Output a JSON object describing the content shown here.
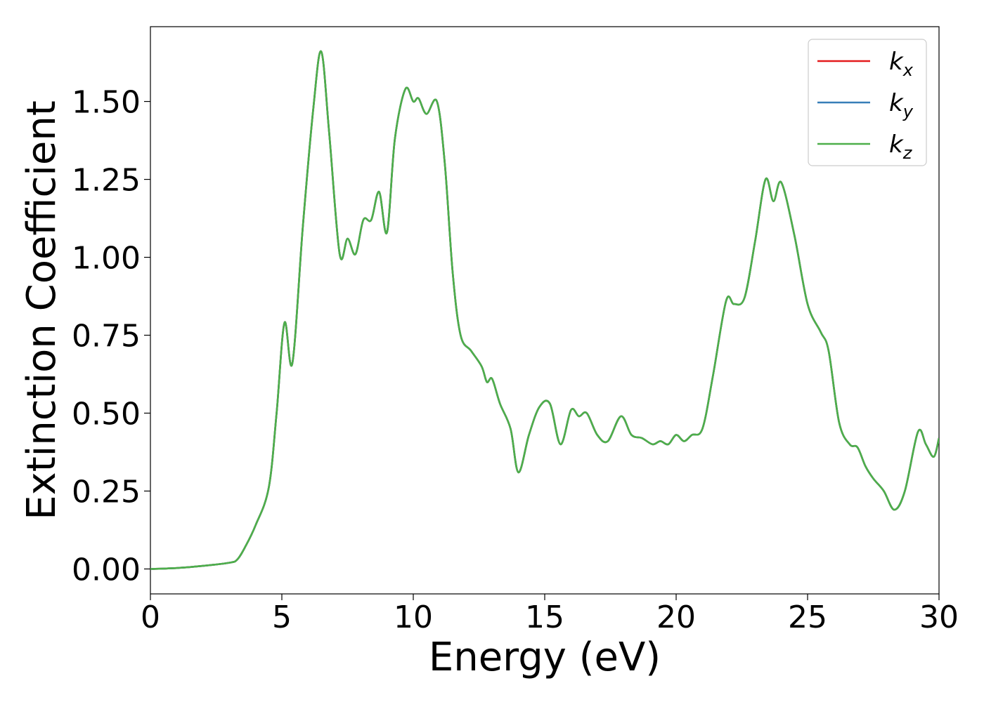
{
  "chart_data": {
    "type": "line",
    "xlabel": "Energy (eV)",
    "ylabel": "Extinction Coefficient",
    "xlim": [
      0,
      30
    ],
    "ylim": [
      -0.08,
      1.74
    ],
    "xticks": [
      0,
      5,
      10,
      15,
      20,
      25,
      30
    ],
    "xtick_labels": [
      "0",
      "5",
      "10",
      "15",
      "20",
      "25",
      "30"
    ],
    "yticks": [
      0,
      0.25,
      0.5,
      0.75,
      1.0,
      1.25,
      1.5
    ],
    "ytick_labels": [
      "0.00",
      "0.25",
      "0.50",
      "0.75",
      "1.00",
      "1.25",
      "1.50"
    ],
    "grid": false,
    "legend_position": "top-right",
    "series": [
      {
        "name": "k_x",
        "label_main": "k",
        "label_sub": "x",
        "color": "#e41a1c"
      },
      {
        "name": "k_y",
        "label_main": "k",
        "label_sub": "y",
        "color": "#377eb8"
      },
      {
        "name": "k_z",
        "label_main": "k",
        "label_sub": "z",
        "color": "#4daf4a"
      }
    ],
    "x": [
      0,
      1,
      2,
      3,
      3.3,
      3.6,
      4.0,
      4.5,
      4.8,
      5.1,
      5.4,
      5.8,
      6.2,
      6.5,
      6.8,
      7.2,
      7.5,
      7.8,
      8.1,
      8.4,
      8.7,
      9.0,
      9.3,
      9.7,
      10.0,
      10.2,
      10.5,
      10.9,
      11.2,
      11.5,
      11.8,
      12.2,
      12.6,
      12.8,
      13.0,
      13.3,
      13.7,
      14.0,
      14.4,
      14.8,
      15.2,
      15.6,
      16.0,
      16.3,
      16.6,
      17.0,
      17.4,
      17.9,
      18.3,
      18.7,
      19.1,
      19.4,
      19.7,
      20.0,
      20.3,
      20.6,
      21.0,
      21.4,
      21.9,
      22.2,
      22.6,
      23.0,
      23.4,
      23.7,
      24.0,
      24.5,
      25.0,
      25.5,
      25.8,
      26.2,
      26.6,
      26.9,
      27.2,
      27.5,
      27.9,
      28.3,
      28.7,
      29.2,
      29.5,
      29.8,
      30.0
    ],
    "y": [
      0.0,
      0.003,
      0.01,
      0.02,
      0.03,
      0.07,
      0.14,
      0.26,
      0.5,
      0.79,
      0.66,
      1.1,
      1.48,
      1.66,
      1.4,
      1.01,
      1.06,
      1.01,
      1.12,
      1.12,
      1.21,
      1.08,
      1.38,
      1.54,
      1.5,
      1.51,
      1.46,
      1.5,
      1.3,
      0.95,
      0.75,
      0.7,
      0.65,
      0.6,
      0.61,
      0.53,
      0.45,
      0.31,
      0.43,
      0.52,
      0.53,
      0.4,
      0.51,
      0.49,
      0.5,
      0.43,
      0.41,
      0.49,
      0.43,
      0.42,
      0.4,
      0.41,
      0.4,
      0.43,
      0.41,
      0.43,
      0.45,
      0.62,
      0.86,
      0.85,
      0.87,
      1.05,
      1.25,
      1.18,
      1.24,
      1.07,
      0.85,
      0.76,
      0.7,
      0.47,
      0.4,
      0.39,
      0.33,
      0.29,
      0.25,
      0.19,
      0.25,
      0.44,
      0.4,
      0.36,
      0.42
    ]
  }
}
